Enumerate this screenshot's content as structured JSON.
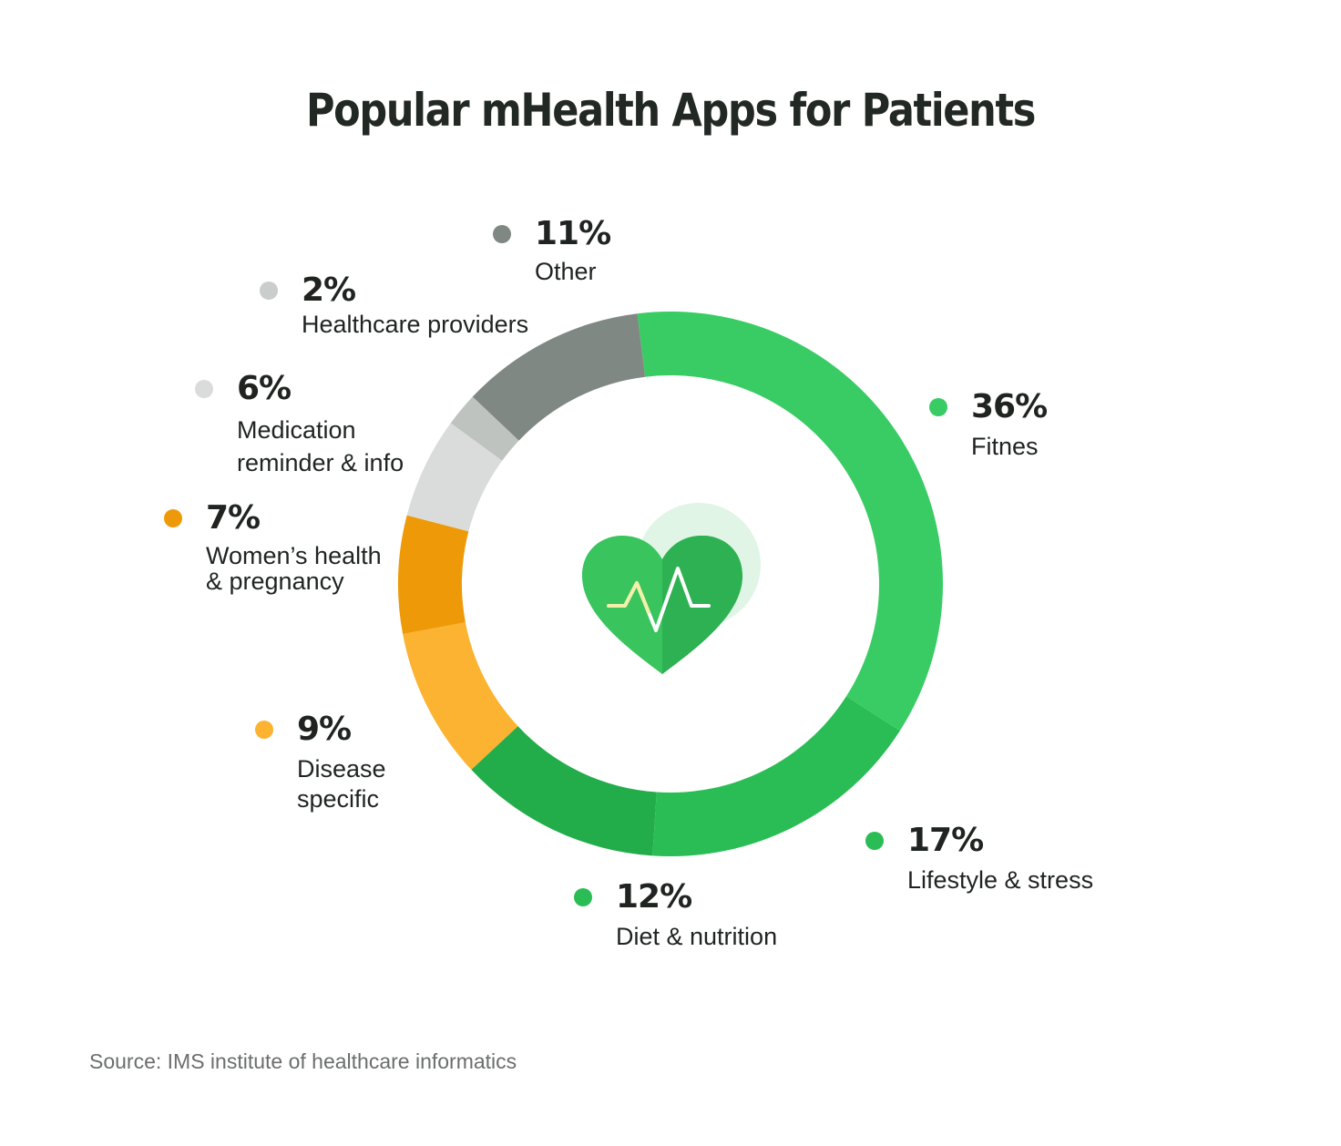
{
  "chart_data": {
    "type": "pie",
    "title": "Popular mHealth Apps for Patients",
    "source": "Source: IMS institute of healthcare informatics",
    "slices": [
      {
        "label": "Fitnes",
        "value": 36,
        "value_label": "36%",
        "color": "#39cc64"
      },
      {
        "label": "Lifestyle & stress",
        "value": 17,
        "value_label": "17%",
        "color": "#2bbd55"
      },
      {
        "label": "Diet & nutrition",
        "value": 12,
        "value_label": "12%",
        "color": "#22ad4a"
      },
      {
        "label": "Disease\nspecific",
        "value": 9,
        "value_label": "9%",
        "color": "#fbb331"
      },
      {
        "label": "Women’s health\n& pregnancy",
        "value": 7,
        "value_label": "7%",
        "color": "#ee9a08"
      },
      {
        "label": "Medication\nreminder & info",
        "value": 6,
        "value_label": "6%",
        "color": "#d9dcda"
      },
      {
        "label": "Healthcare providers",
        "value": 2,
        "value_label": "2%",
        "color": "#bec3c0"
      },
      {
        "label": "Other",
        "value": 11,
        "value_label": "11%",
        "color": "#7f8882"
      }
    ]
  },
  "center_icon": "heart-pulse-icon"
}
